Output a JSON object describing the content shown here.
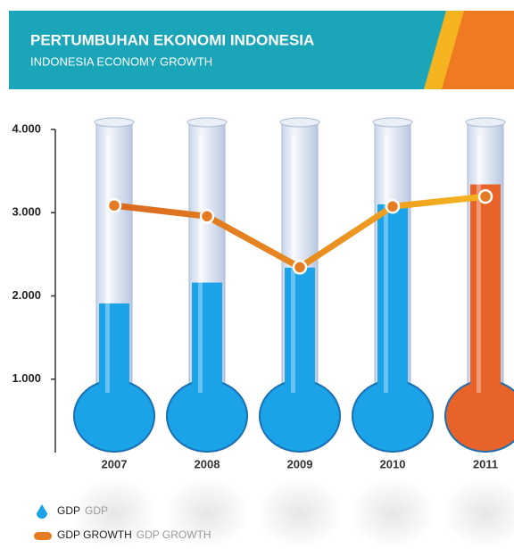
{
  "chart_data": {
    "type": "thermometer",
    "title": "PERTUMBUHAN EKONOMI INDONESIA",
    "subtitle": "INDONESIA ECONOMY GROWTH",
    "categories": [
      "2007",
      "2008",
      "2009",
      "2010",
      "2011"
    ],
    "series": [
      {
        "name": "GDP",
        "legend_subtitle": "GDP",
        "color": "#1aa3e8",
        "colors": [
          "#1aa3e8",
          "#1aa3e8",
          "#1aa3e8",
          "#1aa3e8",
          "#e8632a"
        ],
        "values": [
          1910,
          2160,
          2340,
          3100,
          3340
        ]
      },
      {
        "name": "GDP GROWTH",
        "legend_subtitle": "GDP GROWTH",
        "color": "#e57c22",
        "values": [
          3086,
          2957,
          2344,
          3075,
          3194
        ]
      }
    ],
    "ylim": [
      0,
      4000
    ],
    "yticks": [
      {
        "value": 1000,
        "label": "1.000"
      },
      {
        "value": 2000,
        "label": "2.000"
      },
      {
        "value": 3000,
        "label": "3.000"
      },
      {
        "value": 4000,
        "label": "4.000"
      }
    ]
  }
}
